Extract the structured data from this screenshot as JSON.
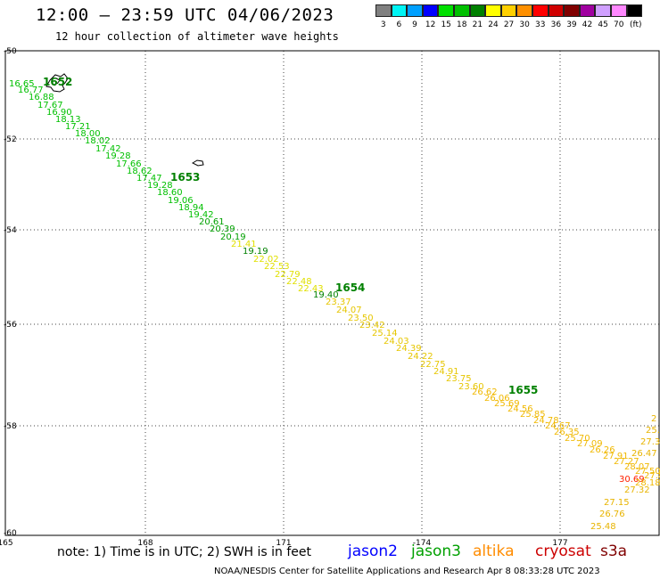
{
  "header": {
    "title": "12:00 – 23:59 UTC 04/06/2023",
    "subtitle": "12 hour collection of altimeter wave heights"
  },
  "legend": {
    "unit": "(ft)",
    "entries": [
      {
        "label": "3",
        "color": "#808080"
      },
      {
        "label": "6",
        "color": "#00f5f5"
      },
      {
        "label": "9",
        "color": "#00a0ff"
      },
      {
        "label": "12",
        "color": "#0000ff"
      },
      {
        "label": "15",
        "color": "#00e000"
      },
      {
        "label": "18",
        "color": "#00c000"
      },
      {
        "label": "21",
        "color": "#008000"
      },
      {
        "label": "24",
        "color": "#ffff00"
      },
      {
        "label": "27",
        "color": "#ffd000"
      },
      {
        "label": "30",
        "color": "#ff9000"
      },
      {
        "label": "33",
        "color": "#ff0000"
      },
      {
        "label": "36",
        "color": "#d00000"
      },
      {
        "label": "39",
        "color": "#800000"
      },
      {
        "label": "42",
        "color": "#a000a0"
      },
      {
        "label": "45",
        "color": "#d0a0ff"
      },
      {
        "label": "70",
        "color": "#ff88ff"
      },
      {
        "label": "",
        "color": "#000000"
      }
    ]
  },
  "map": {
    "lon_range": [
      165,
      179.6
    ],
    "lat_range": [
      -50,
      -60.05
    ],
    "lon_ticks": [
      "165",
      "168",
      "171",
      "-174",
      "177"
    ],
    "lat_ticks": [
      "-50",
      "-52",
      "-54",
      "-56",
      "-58",
      "-60"
    ],
    "gridlines": "dotted",
    "pass_labels": [
      "1652",
      "1653",
      "1654",
      "1655"
    ],
    "swh_labels": [
      "16.65",
      "16.77",
      "16.88",
      "17.67",
      "16.90",
      "18.13",
      "17.21",
      "18.00",
      "18.02",
      "17.42",
      "19.28",
      "17.66",
      "18.62",
      "17.47",
      "19.28",
      "18.60",
      "19.06",
      "18.94",
      "19.42",
      "20.61",
      "20.39",
      "20.19",
      "21.41",
      "19.19",
      "22.02",
      "22.53",
      "22.79",
      "22.48",
      "22.43",
      "19.40",
      "23.37",
      "24.07",
      "23.50",
      "23.42",
      "25.14",
      "24.03",
      "24.39",
      "24.22",
      "22.75",
      "24.91",
      "23.75",
      "23.60",
      "26.62",
      "26.06",
      "25.69",
      "24.56",
      "25.85",
      "24.78",
      "24.67",
      "26.35",
      "25.70",
      "27.09",
      "26.26",
      "27.91",
      "27.27",
      "28.07",
      "27.50",
      "27.81",
      "30.69",
      "28.18",
      "27.32",
      "27.15",
      "26.76",
      "25.48",
      "26.47",
      "27.3",
      "25.",
      "2"
    ]
  },
  "note": "note: 1) Time is in UTC; 2) SWH is in feet",
  "satellites": {
    "jason2": "jason2",
    "jason3": "jason3",
    "altika": "altika",
    "cryosat": "cryosat",
    "s3a": "s3a"
  },
  "footer": "NOAA/NESDIS Center for Satellite Applications and Research    Apr  8 08:33:28 UTC 2023"
}
